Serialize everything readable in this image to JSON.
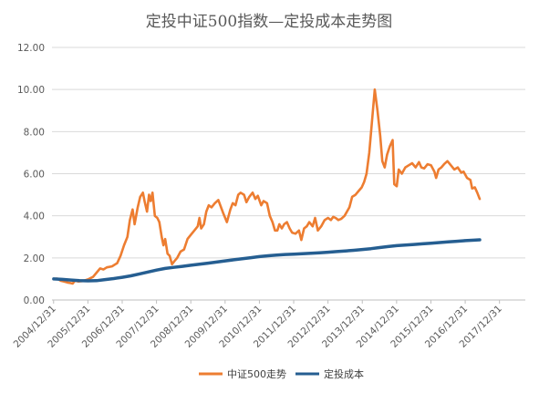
{
  "chart_data": {
    "type": "line",
    "title": "定投中证500指数—定投成本走势图",
    "xlabel": "",
    "ylabel": "",
    "ylim": [
      0,
      12
    ],
    "y_ticks": [
      "0.00",
      "2.00",
      "4.00",
      "6.00",
      "8.00",
      "10.00",
      "12.00"
    ],
    "x_tick_labels": [
      "2004/12/31",
      "2005/12/31",
      "2006/12/31",
      "2007/12/31",
      "2008/12/31",
      "2009/12/31",
      "2010/12/31",
      "2011/12/31",
      "2012/12/31",
      "2013/12/31",
      "2014/12/31",
      "2015/12/31",
      "2016/12/31",
      "2017/12/31"
    ],
    "x_range": [
      2004.95,
      2018.75
    ],
    "grid": "horizontal",
    "legend_position": "bottom",
    "colors": {
      "index": "#ED7D31",
      "cost": "#255E91",
      "grid": "#D9D9D9",
      "axis": "#BFBFBF",
      "text": "#595959"
    },
    "series": [
      {
        "name": "中证500走势",
        "color": "#ED7D31",
        "points": [
          [
            2005.0,
            1.0
          ],
          [
            2005.1,
            1.02
          ],
          [
            2005.2,
            0.92
          ],
          [
            2005.3,
            0.88
          ],
          [
            2005.4,
            0.83
          ],
          [
            2005.5,
            0.8
          ],
          [
            2005.55,
            0.78
          ],
          [
            2005.62,
            0.92
          ],
          [
            2005.72,
            0.88
          ],
          [
            2005.85,
            0.9
          ],
          [
            2006.0,
            0.98
          ],
          [
            2006.15,
            1.1
          ],
          [
            2006.25,
            1.3
          ],
          [
            2006.35,
            1.5
          ],
          [
            2006.45,
            1.45
          ],
          [
            2006.55,
            1.55
          ],
          [
            2006.7,
            1.6
          ],
          [
            2006.85,
            1.75
          ],
          [
            2006.95,
            2.1
          ],
          [
            2007.05,
            2.6
          ],
          [
            2007.15,
            3.0
          ],
          [
            2007.22,
            3.8
          ],
          [
            2007.3,
            4.3
          ],
          [
            2007.36,
            3.6
          ],
          [
            2007.45,
            4.4
          ],
          [
            2007.52,
            4.9
          ],
          [
            2007.6,
            5.1
          ],
          [
            2007.65,
            4.7
          ],
          [
            2007.72,
            4.2
          ],
          [
            2007.78,
            5.0
          ],
          [
            2007.83,
            4.7
          ],
          [
            2007.88,
            5.1
          ],
          [
            2007.95,
            4.0
          ],
          [
            2008.02,
            3.9
          ],
          [
            2008.08,
            3.7
          ],
          [
            2008.15,
            3.0
          ],
          [
            2008.2,
            2.6
          ],
          [
            2008.25,
            2.9
          ],
          [
            2008.32,
            2.2
          ],
          [
            2008.38,
            2.1
          ],
          [
            2008.45,
            1.7
          ],
          [
            2008.52,
            1.85
          ],
          [
            2008.6,
            2.0
          ],
          [
            2008.7,
            2.3
          ],
          [
            2008.8,
            2.4
          ],
          [
            2008.9,
            2.9
          ],
          [
            2009.0,
            3.1
          ],
          [
            2009.1,
            3.3
          ],
          [
            2009.2,
            3.5
          ],
          [
            2009.25,
            3.9
          ],
          [
            2009.3,
            3.4
          ],
          [
            2009.38,
            3.6
          ],
          [
            2009.45,
            4.2
          ],
          [
            2009.52,
            4.5
          ],
          [
            2009.6,
            4.4
          ],
          [
            2009.7,
            4.6
          ],
          [
            2009.8,
            4.75
          ],
          [
            2009.88,
            4.4
          ],
          [
            2009.95,
            4.1
          ],
          [
            2010.05,
            3.7
          ],
          [
            2010.15,
            4.3
          ],
          [
            2010.22,
            4.6
          ],
          [
            2010.3,
            4.5
          ],
          [
            2010.38,
            5.0
          ],
          [
            2010.45,
            5.1
          ],
          [
            2010.55,
            5.0
          ],
          [
            2010.62,
            4.65
          ],
          [
            2010.7,
            4.9
          ],
          [
            2010.8,
            5.1
          ],
          [
            2010.88,
            4.8
          ],
          [
            2010.95,
            4.95
          ],
          [
            2011.05,
            4.5
          ],
          [
            2011.12,
            4.7
          ],
          [
            2011.22,
            4.6
          ],
          [
            2011.3,
            4.0
          ],
          [
            2011.38,
            3.7
          ],
          [
            2011.45,
            3.3
          ],
          [
            2011.52,
            3.3
          ],
          [
            2011.58,
            3.6
          ],
          [
            2011.65,
            3.4
          ],
          [
            2011.72,
            3.6
          ],
          [
            2011.8,
            3.7
          ],
          [
            2011.88,
            3.4
          ],
          [
            2011.95,
            3.2
          ],
          [
            2012.05,
            3.15
          ],
          [
            2012.15,
            3.3
          ],
          [
            2012.22,
            2.85
          ],
          [
            2012.3,
            3.4
          ],
          [
            2012.38,
            3.5
          ],
          [
            2012.45,
            3.7
          ],
          [
            2012.55,
            3.5
          ],
          [
            2012.62,
            3.9
          ],
          [
            2012.7,
            3.3
          ],
          [
            2012.8,
            3.5
          ],
          [
            2012.9,
            3.8
          ],
          [
            2013.0,
            3.9
          ],
          [
            2013.08,
            3.8
          ],
          [
            2013.15,
            3.95
          ],
          [
            2013.22,
            3.9
          ],
          [
            2013.3,
            3.8
          ],
          [
            2013.38,
            3.85
          ],
          [
            2013.48,
            4.0
          ],
          [
            2013.55,
            4.2
          ],
          [
            2013.62,
            4.4
          ],
          [
            2013.7,
            4.9
          ],
          [
            2013.8,
            5.0
          ],
          [
            2013.9,
            5.2
          ],
          [
            2013.98,
            5.35
          ],
          [
            2014.05,
            5.6
          ],
          [
            2014.12,
            6.0
          ],
          [
            2014.2,
            7.0
          ],
          [
            2014.28,
            8.5
          ],
          [
            2014.36,
            10.0
          ],
          [
            2014.44,
            9.0
          ],
          [
            2014.52,
            7.8
          ],
          [
            2014.58,
            6.6
          ],
          [
            2014.65,
            6.3
          ],
          [
            2014.72,
            6.9
          ],
          [
            2014.8,
            7.3
          ],
          [
            2014.88,
            7.6
          ],
          [
            2014.93,
            5.5
          ],
          [
            2015.0,
            5.4
          ],
          [
            2015.06,
            6.2
          ],
          [
            2015.15,
            6.0
          ],
          [
            2015.25,
            6.3
          ],
          [
            2015.35,
            6.4
          ],
          [
            2015.45,
            6.5
          ],
          [
            2015.55,
            6.3
          ],
          [
            2015.65,
            6.55
          ],
          [
            2015.72,
            6.3
          ],
          [
            2015.8,
            6.25
          ],
          [
            2015.9,
            6.45
          ],
          [
            2016.0,
            6.4
          ],
          [
            2016.1,
            6.1
          ],
          [
            2016.15,
            5.8
          ],
          [
            2016.22,
            6.2
          ],
          [
            2016.3,
            6.3
          ],
          [
            2016.38,
            6.45
          ],
          [
            2016.48,
            6.6
          ],
          [
            2016.58,
            6.4
          ],
          [
            2016.68,
            6.2
          ],
          [
            2016.78,
            6.3
          ],
          [
            2016.88,
            6.05
          ],
          [
            2016.95,
            6.1
          ],
          [
            2017.05,
            5.8
          ],
          [
            2017.15,
            5.7
          ],
          [
            2017.2,
            5.3
          ],
          [
            2017.28,
            5.35
          ],
          [
            2017.35,
            5.1
          ],
          [
            2017.42,
            4.8
          ]
        ]
      },
      {
        "name": "定投成本",
        "color": "#255E91",
        "points": [
          [
            2005.0,
            1.0
          ],
          [
            2005.25,
            0.98
          ],
          [
            2005.5,
            0.95
          ],
          [
            2005.75,
            0.92
          ],
          [
            2006.0,
            0.91
          ],
          [
            2006.25,
            0.92
          ],
          [
            2006.5,
            0.97
          ],
          [
            2006.75,
            1.02
          ],
          [
            2007.0,
            1.08
          ],
          [
            2007.25,
            1.15
          ],
          [
            2007.5,
            1.24
          ],
          [
            2007.75,
            1.33
          ],
          [
            2008.0,
            1.42
          ],
          [
            2008.25,
            1.5
          ],
          [
            2008.5,
            1.55
          ],
          [
            2008.75,
            1.6
          ],
          [
            2009.0,
            1.65
          ],
          [
            2009.25,
            1.7
          ],
          [
            2009.5,
            1.75
          ],
          [
            2009.75,
            1.8
          ],
          [
            2010.0,
            1.86
          ],
          [
            2010.25,
            1.91
          ],
          [
            2010.5,
            1.96
          ],
          [
            2010.75,
            2.01
          ],
          [
            2011.0,
            2.06
          ],
          [
            2011.25,
            2.1
          ],
          [
            2011.5,
            2.13
          ],
          [
            2011.75,
            2.16
          ],
          [
            2012.0,
            2.18
          ],
          [
            2012.25,
            2.2
          ],
          [
            2012.5,
            2.22
          ],
          [
            2012.75,
            2.24
          ],
          [
            2013.0,
            2.27
          ],
          [
            2013.25,
            2.3
          ],
          [
            2013.5,
            2.33
          ],
          [
            2013.75,
            2.36
          ],
          [
            2014.0,
            2.4
          ],
          [
            2014.25,
            2.44
          ],
          [
            2014.5,
            2.49
          ],
          [
            2014.75,
            2.54
          ],
          [
            2015.0,
            2.58
          ],
          [
            2015.25,
            2.61
          ],
          [
            2015.5,
            2.64
          ],
          [
            2015.75,
            2.67
          ],
          [
            2016.0,
            2.7
          ],
          [
            2016.25,
            2.73
          ],
          [
            2016.5,
            2.76
          ],
          [
            2016.75,
            2.79
          ],
          [
            2017.0,
            2.82
          ],
          [
            2017.25,
            2.84
          ],
          [
            2017.42,
            2.86
          ]
        ]
      }
    ]
  }
}
